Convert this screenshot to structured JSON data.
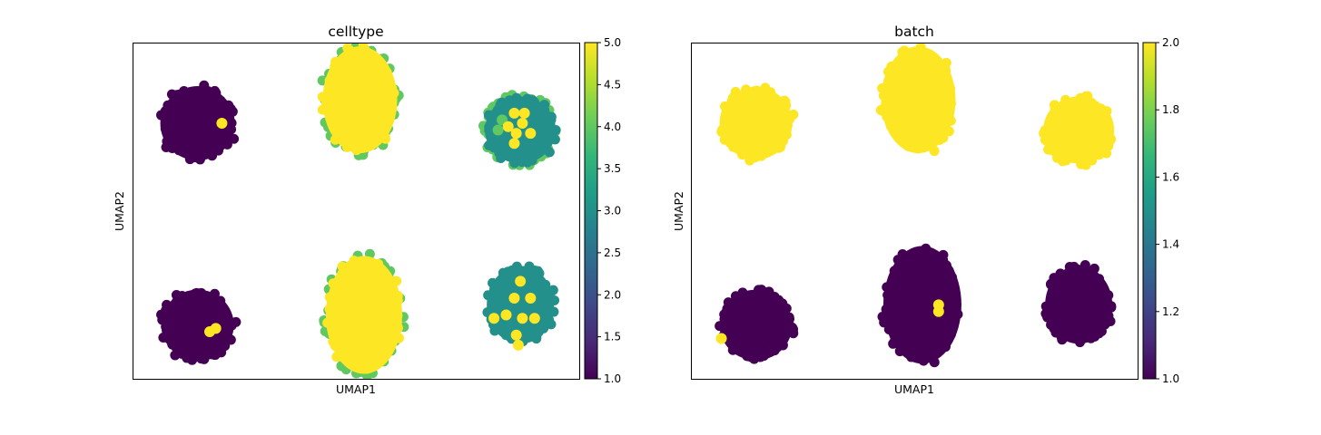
{
  "chart_data": [
    {
      "type": "scatter",
      "title": "celltype",
      "xlabel": "UMAP1",
      "ylabel": "UMAP2",
      "colorbar": {
        "range": [
          1.0,
          5.0
        ],
        "ticks": [
          "1.0",
          "1.5",
          "2.0",
          "2.5",
          "3.0",
          "3.5",
          "4.0",
          "4.5",
          "5.0"
        ],
        "colormap": "viridis"
      },
      "axis_ticks": false,
      "clusters": [
        {
          "x": 3.2,
          "y": 7.6,
          "value": 1,
          "mix": []
        },
        {
          "x": 3.2,
          "y": 1.6,
          "value": 1,
          "mix": [
            5
          ]
        },
        {
          "x": 11.2,
          "y": 8.3,
          "value": 5,
          "mix": [
            4
          ]
        },
        {
          "x": 11.4,
          "y": 1.9,
          "value": 5,
          "mix": [
            4
          ]
        },
        {
          "x": 19.1,
          "y": 7.4,
          "value": 3,
          "mix": [
            5,
            4
          ]
        },
        {
          "x": 19.1,
          "y": 2.2,
          "value": 3,
          "mix": [
            5
          ]
        }
      ],
      "highlighted_points": [
        {
          "x": 4.4,
          "y": 7.6,
          "value": 5
        },
        {
          "x": 3.8,
          "y": 1.4,
          "value": 5
        },
        {
          "x": 4.1,
          "y": 1.5,
          "value": 5
        },
        {
          "x": 18.0,
          "y": 7.4,
          "value": 4
        },
        {
          "x": 18.2,
          "y": 7.7,
          "value": 4
        },
        {
          "x": 18.5,
          "y": 7.5,
          "value": 5
        },
        {
          "x": 18.8,
          "y": 7.9,
          "value": 5
        },
        {
          "x": 19.3,
          "y": 7.9,
          "value": 5
        },
        {
          "x": 18.9,
          "y": 7.3,
          "value": 5
        },
        {
          "x": 19.2,
          "y": 7.6,
          "value": 5
        },
        {
          "x": 19.6,
          "y": 7.3,
          "value": 5
        },
        {
          "x": 18.8,
          "y": 7.0,
          "value": 5
        },
        {
          "x": 19.1,
          "y": 2.9,
          "value": 5
        },
        {
          "x": 18.8,
          "y": 2.4,
          "value": 5
        },
        {
          "x": 19.6,
          "y": 2.4,
          "value": 5
        },
        {
          "x": 18.4,
          "y": 1.9,
          "value": 5
        },
        {
          "x": 19.2,
          "y": 1.8,
          "value": 5
        },
        {
          "x": 19.8,
          "y": 1.8,
          "value": 5
        },
        {
          "x": 18.9,
          "y": 1.3,
          "value": 5
        },
        {
          "x": 19.0,
          "y": 1.0,
          "value": 5
        },
        {
          "x": 17.8,
          "y": 1.8,
          "value": 5
        }
      ]
    },
    {
      "type": "scatter",
      "title": "batch",
      "xlabel": "UMAP1",
      "ylabel": "UMAP2",
      "colorbar": {
        "range": [
          1.0,
          2.0
        ],
        "ticks": [
          "1.0",
          "1.2",
          "1.4",
          "1.6",
          "1.8",
          "2.0"
        ],
        "colormap": "viridis"
      },
      "axis_ticks": false,
      "clusters": [
        {
          "x": 3.2,
          "y": 7.6,
          "value": 2
        },
        {
          "x": 3.2,
          "y": 1.6,
          "value": 1
        },
        {
          "x": 11.2,
          "y": 8.3,
          "value": 2
        },
        {
          "x": 11.4,
          "y": 2.2,
          "value": 1
        },
        {
          "x": 19.1,
          "y": 7.4,
          "value": 2
        },
        {
          "x": 19.1,
          "y": 2.2,
          "value": 1
        }
      ],
      "highlighted_points": [
        {
          "x": 1.5,
          "y": 1.2,
          "value": 2
        },
        {
          "x": 12.2,
          "y": 2.2,
          "value": 2
        },
        {
          "x": 12.2,
          "y": 2.0,
          "value": 2
        },
        {
          "x": 17.4,
          "y": 7.3,
          "value": 2
        }
      ]
    }
  ]
}
